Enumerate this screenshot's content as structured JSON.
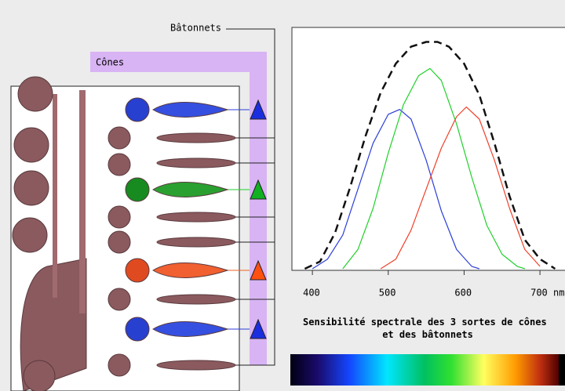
{
  "illustration": {
    "rods_label": "Bâtonnets",
    "cones_label": "Cônes"
  },
  "chart_data": {
    "type": "line",
    "title": "Sensibilité spectrale des 3 sortes de cônes et des bâtonnets",
    "xlim": [
      373,
      733
    ],
    "xticks": [
      400,
      500,
      600,
      {
        "value": 700,
        "label": "700 nm"
      }
    ],
    "ylim": [
      0,
      1
    ],
    "series": [
      {
        "color": "#2b3fd8",
        "dash": false,
        "x": [
          400,
          420,
          440,
          460,
          480,
          500,
          515,
          530,
          550,
          570,
          590,
          610,
          620
        ],
        "values": [
          0,
          0.04,
          0.14,
          0.33,
          0.52,
          0.64,
          0.66,
          0.62,
          0.45,
          0.24,
          0.08,
          0.01,
          0
        ]
      },
      {
        "color": "#1fd12a",
        "dash": false,
        "x": [
          440,
          460,
          480,
          500,
          520,
          540,
          555,
          570,
          590,
          610,
          630,
          650,
          670,
          680
        ],
        "values": [
          0,
          0.08,
          0.25,
          0.48,
          0.68,
          0.8,
          0.83,
          0.78,
          0.6,
          0.38,
          0.18,
          0.06,
          0.01,
          0
        ]
      },
      {
        "color": "#f0402a",
        "dash": false,
        "x": [
          490,
          510,
          530,
          550,
          570,
          590,
          603,
          620,
          640,
          660,
          680,
          700
        ],
        "values": [
          0,
          0.04,
          0.16,
          0.33,
          0.5,
          0.63,
          0.67,
          0.62,
          0.45,
          0.25,
          0.08,
          0.01
        ]
      },
      {
        "color": "#111111",
        "dash": true,
        "x": [
          390,
          410,
          430,
          450,
          470,
          490,
          510,
          530,
          550,
          565,
          580,
          600,
          620,
          640,
          660,
          680,
          700,
          720
        ],
        "values": [
          0,
          0.03,
          0.15,
          0.34,
          0.55,
          0.73,
          0.85,
          0.92,
          0.94,
          0.94,
          0.92,
          0.85,
          0.72,
          0.52,
          0.3,
          0.12,
          0.04,
          0
        ]
      }
    ]
  }
}
